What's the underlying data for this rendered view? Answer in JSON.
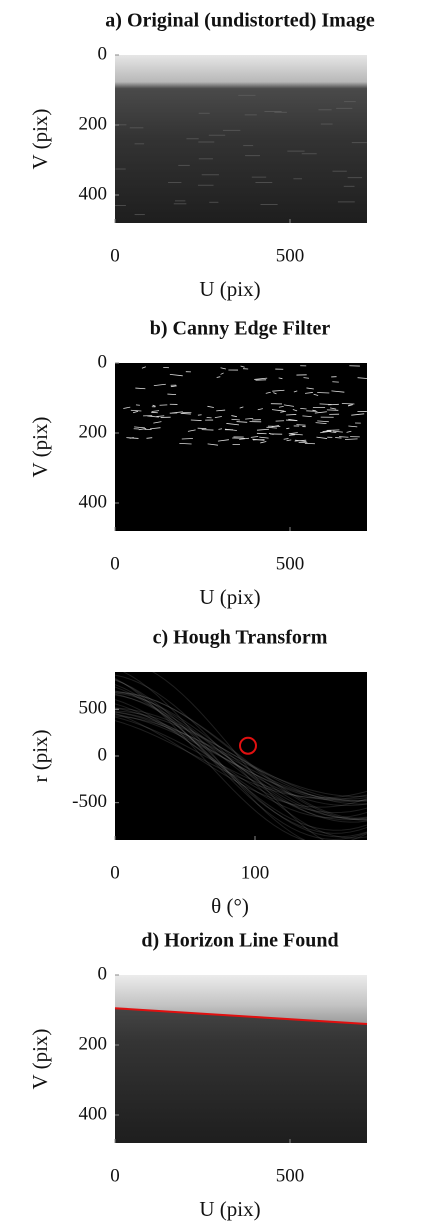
{
  "chart_data": [
    {
      "type": "image",
      "title": "a) Original (undistorted) Image",
      "xlabel": "U (pix)",
      "ylabel": "V (pix)",
      "xlim": [
        0,
        720
      ],
      "ylim": [
        0,
        480
      ],
      "y_reversed": true,
      "xticks": [
        0,
        500
      ],
      "yticks": [
        0,
        200,
        400
      ]
    },
    {
      "type": "image",
      "title": "b) Canny Edge Filter",
      "xlabel": "U (pix)",
      "ylabel": "V (pix)",
      "xlim": [
        0,
        720
      ],
      "ylim": [
        0,
        480
      ],
      "y_reversed": true,
      "xticks": [
        0,
        500
      ],
      "yticks": [
        0,
        200,
        400
      ]
    },
    {
      "type": "image",
      "title": "c) Hough Transform",
      "xlabel": "θ (°)",
      "ylabel": "r (pix)",
      "xlim": [
        0,
        180
      ],
      "ylim": [
        -900,
        900
      ],
      "y_reversed": false,
      "xticks": [
        0,
        100
      ],
      "yticks": [
        500,
        0,
        -500
      ],
      "marker": {
        "x": 95,
        "y": 110,
        "color": "#e01010"
      }
    },
    {
      "type": "image",
      "title": "d) Horizon Line Found",
      "xlabel": "U (pix)",
      "ylabel": "V (pix)",
      "xlim": [
        0,
        720
      ],
      "ylim": [
        0,
        480
      ],
      "y_reversed": true,
      "xticks": [
        0,
        500
      ],
      "yticks": [
        0,
        200,
        400
      ],
      "line": {
        "x": [
          0,
          720
        ],
        "y": [
          95,
          140
        ],
        "color": "#e01010"
      }
    }
  ]
}
